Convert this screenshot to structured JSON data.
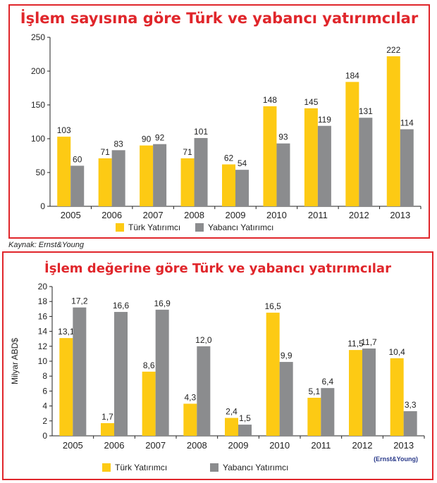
{
  "source_note": "Kaynak: Ernst&Young",
  "colors": {
    "turk": "#fdca14",
    "yabanci": "#8b8c8e",
    "frame": "#e0262b"
  },
  "chart_data": [
    {
      "type": "bar",
      "title": "İşlem sayısına göre Türk ve yabancı yatırımcılar",
      "categories": [
        "2005",
        "2006",
        "2007",
        "2008",
        "2009",
        "2010",
        "2011",
        "2012",
        "2013"
      ],
      "series": [
        {
          "name": "Türk Yatırımcı",
          "values": [
            103,
            71,
            90,
            71,
            62,
            148,
            145,
            184,
            222
          ]
        },
        {
          "name": "Yabancı Yatırımcı",
          "values": [
            60,
            83,
            92,
            101,
            54,
            93,
            119,
            131,
            114
          ]
        }
      ],
      "value_labels": [
        [
          "103",
          "71",
          "90",
          "71",
          "62",
          "148",
          "145",
          "184",
          "222"
        ],
        [
          "60",
          "83",
          "92",
          "101",
          "54",
          "93",
          "119",
          "131",
          "114"
        ]
      ],
      "yticks": [
        "0",
        "50",
        "100",
        "150",
        "200",
        "250"
      ],
      "ylim": [
        0,
        250
      ],
      "ylabel": "",
      "legend_position": "bottom"
    },
    {
      "type": "bar",
      "title": "İşlem değerine göre Türk ve yabancı yatırımcılar",
      "categories": [
        "2005",
        "2006",
        "2007",
        "2008",
        "2009",
        "2010",
        "2011",
        "2012",
        "2013"
      ],
      "series": [
        {
          "name": "Türk Yatırımcı",
          "values": [
            13.1,
            1.7,
            8.6,
            4.3,
            2.4,
            16.5,
            5.1,
            11.5,
            10.4
          ]
        },
        {
          "name": "Yabancı Yatırımcı",
          "values": [
            17.2,
            16.6,
            16.9,
            12.0,
            1.5,
            9.9,
            6.4,
            11.7,
            3.3
          ]
        }
      ],
      "value_labels": [
        [
          "13,1",
          "1,7",
          "8,6",
          "4,3",
          "2,4",
          "16,5",
          "5,1",
          "11,5",
          "10,4"
        ],
        [
          "17,2",
          "16,6",
          "16,9",
          "12,0",
          "1,5",
          "9,9",
          "6,4",
          "11,7",
          "3,3"
        ]
      ],
      "yticks": [
        "0",
        "2",
        "4",
        "6",
        "8",
        "10",
        "12",
        "14",
        "16",
        "18",
        "20"
      ],
      "ylim": [
        0,
        20
      ],
      "ylabel": "Milyar ABD$",
      "legend_position": "bottom",
      "credit": "(Ernst&Young)"
    }
  ]
}
